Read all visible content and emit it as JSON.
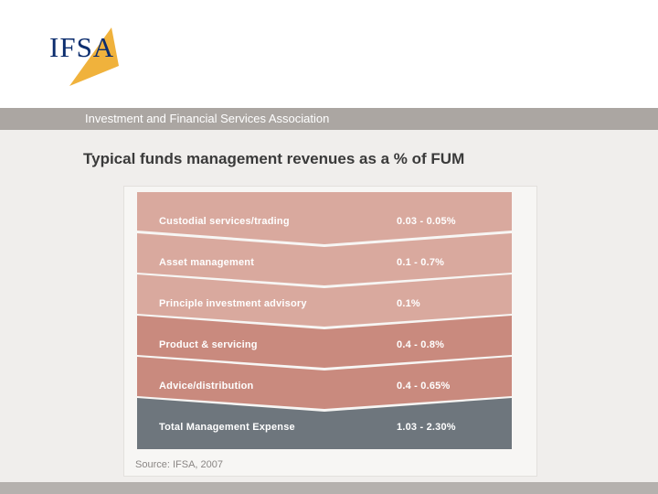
{
  "header": {
    "logo_text": "IFSA",
    "organization": "Investment and Financial Services Association"
  },
  "main": {
    "title": "Typical funds management revenues as a % of FUM"
  },
  "diagram": {
    "rows": [
      {
        "label": "Custodial services/trading",
        "value": "0.03 - 0.05%",
        "color": "#d9a99e"
      },
      {
        "label": "Asset management",
        "value": "0.1 - 0.7%",
        "color": "#d9a99e"
      },
      {
        "label": "Principle investment advisory",
        "value": "0.1%",
        "color": "#d9a99e"
      },
      {
        "label": "Product & servicing",
        "value": "0.4 - 0.8%",
        "color": "#c98a7e"
      },
      {
        "label": "Advice/distribution",
        "value": "0.4 - 0.65%",
        "color": "#c98a7e"
      },
      {
        "label": "Total Management Expense",
        "value": "1.03 - 2.30%",
        "color": "#6e767d"
      }
    ],
    "source": "Source: IFSA, 2007"
  },
  "colors": {
    "brand_navy": "#0c2d6e",
    "brand_orange": "#f0b23c",
    "band_grey": "#aba6a2"
  }
}
